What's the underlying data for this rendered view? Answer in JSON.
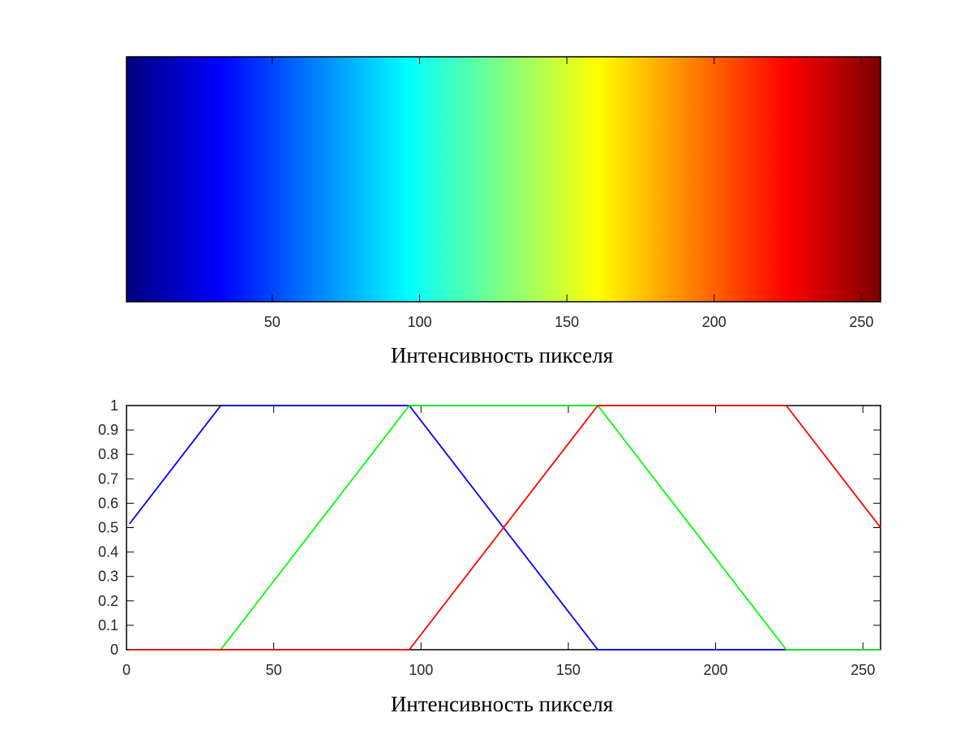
{
  "chart_data": [
    {
      "type": "heatmap",
      "title": "",
      "xlabel": "Интенсивность пикселя",
      "ylabel": "",
      "xlim": [
        0.5,
        256.5
      ],
      "colormap": "jet",
      "color_stops": [
        {
          "x": 1,
          "color": "#000080"
        },
        {
          "x": 32.5,
          "color": "#0000ff"
        },
        {
          "x": 96.5,
          "color": "#00ffff"
        },
        {
          "x": 160.5,
          "color": "#ffff00"
        },
        {
          "x": 224.5,
          "color": "#ff0000"
        },
        {
          "x": 256,
          "color": "#800000"
        }
      ],
      "xticks": [
        50,
        100,
        150,
        200,
        250
      ],
      "xtick_labels": [
        "50",
        "100",
        "150",
        "200",
        "250"
      ],
      "grid": false
    },
    {
      "type": "line",
      "title": "",
      "xlabel": "Интенсивность пикселя",
      "ylabel": "",
      "xlim": [
        0,
        256
      ],
      "ylim": [
        0,
        1
      ],
      "xticks": [
        0,
        50,
        100,
        150,
        200,
        250
      ],
      "xtick_labels": [
        "0",
        "50",
        "100",
        "150",
        "200",
        "250"
      ],
      "yticks": [
        0,
        0.1,
        0.2,
        0.3,
        0.4,
        0.5,
        0.6,
        0.7,
        0.8,
        0.9,
        1
      ],
      "ytick_labels": [
        "0",
        "0.1",
        "0.2",
        "0.3",
        "0.4",
        "0.5",
        "0.6",
        "0.7",
        "0.8",
        "0.9",
        "1"
      ],
      "grid": false,
      "series": [
        {
          "color": "#0000ff",
          "x": [
            1,
            32,
            96,
            160,
            256
          ],
          "y": [
            0.515,
            1,
            1,
            0,
            0
          ]
        },
        {
          "color": "#00ff00",
          "x": [
            1,
            32,
            96,
            160,
            224,
            256
          ],
          "y": [
            0,
            0,
            1,
            1,
            0,
            0
          ]
        },
        {
          "color": "#ff0000",
          "x": [
            1,
            96,
            160,
            224,
            256
          ],
          "y": [
            0,
            0,
            1,
            1,
            0.5
          ]
        }
      ]
    }
  ]
}
